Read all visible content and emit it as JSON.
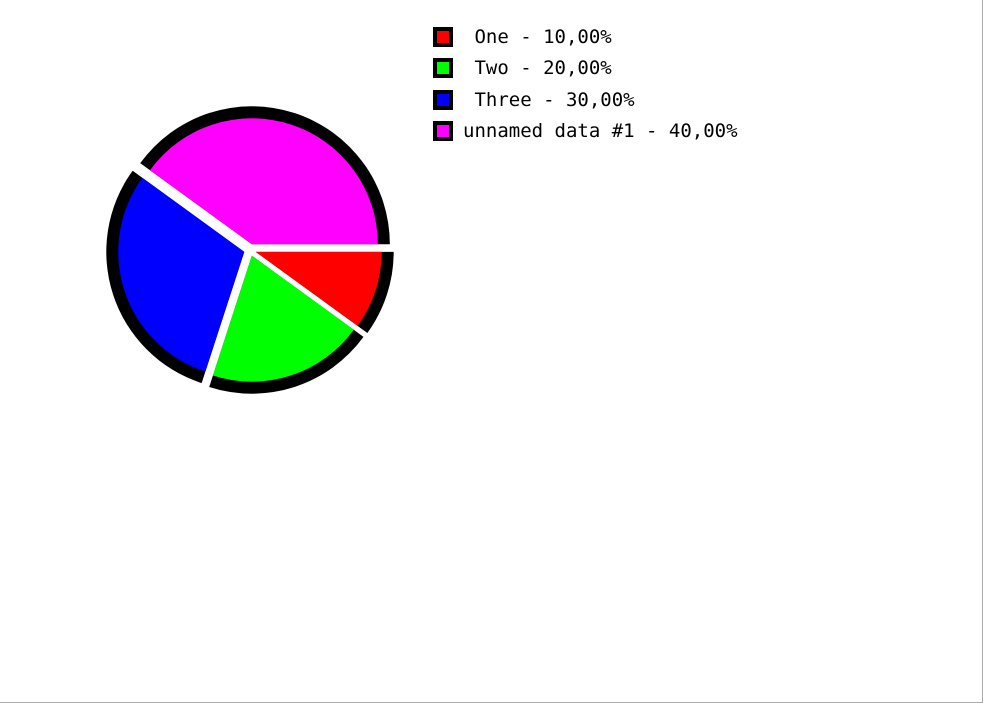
{
  "chart_data": {
    "type": "pie",
    "title": "",
    "slices": [
      {
        "name": "One",
        "value": 10,
        "color": "#ff0000",
        "legend_label": " One - 10,00%"
      },
      {
        "name": "Two",
        "value": 20,
        "color": "#00ff00",
        "legend_label": " Two - 20,00%"
      },
      {
        "name": "Three",
        "value": 30,
        "color": "#0000ff",
        "legend_label": " Three - 30,00%"
      },
      {
        "name": "unnamed data #1",
        "value": 40,
        "color": "#ff00ff",
        "legend_label": "unnamed data #1 - 40,00%"
      }
    ],
    "start_angle_deg": 0,
    "direction": "clockwise",
    "exploded": true,
    "outline_color": "#000000",
    "legend_position": "top-right"
  }
}
